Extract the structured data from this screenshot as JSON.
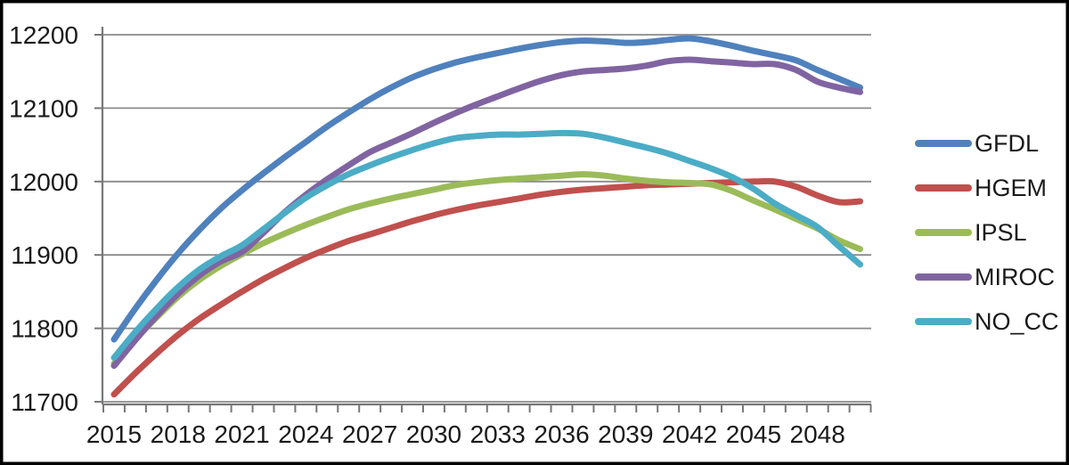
{
  "chart_data": {
    "type": "line",
    "title": "",
    "xlabel": "",
    "ylabel": "",
    "x": [
      2015,
      2016,
      2017,
      2018,
      2019,
      2020,
      2021,
      2022,
      2023,
      2024,
      2025,
      2026,
      2027,
      2028,
      2029,
      2030,
      2031,
      2032,
      2033,
      2034,
      2035,
      2036,
      2037,
      2038,
      2039,
      2040,
      2041,
      2042,
      2043,
      2044,
      2045,
      2046,
      2047,
      2048,
      2049,
      2050
    ],
    "x_tick_labels": [
      "2015",
      "2018",
      "2021",
      "2024",
      "2027",
      "2030",
      "2033",
      "2036",
      "2039",
      "2042",
      "2045",
      "2048"
    ],
    "x_tick_step_years": 3,
    "y_tick_labels": [
      "12200",
      "12100",
      "12000",
      "11900",
      "11800",
      "11700"
    ],
    "y_ticks": [
      12200,
      12100,
      12000,
      11900,
      11800,
      11700
    ],
    "ylim": [
      11690,
      12210
    ],
    "grid": true,
    "legend_position": "right",
    "series": [
      {
        "name": "GFDL",
        "color": "#4F81BD",
        "values": [
          11785,
          11827,
          11866,
          11902,
          11934,
          11963,
          11988,
          12011,
          12033,
          12054,
          12075,
          12094,
          12112,
          12128,
          12142,
          12153,
          12162,
          12169,
          12175,
          12181,
          12186,
          12190,
          12192,
          12191,
          12189,
          12190,
          12193,
          12195,
          12191,
          12185,
          12178,
          12172,
          12165,
          12152,
          12140,
          12128
        ]
      },
      {
        "name": "HGEM",
        "color": "#C0504D",
        "values": [
          11710,
          11739,
          11766,
          11791,
          11813,
          11832,
          11850,
          11867,
          11882,
          11896,
          11908,
          11919,
          11928,
          11937,
          11946,
          11954,
          11961,
          11967,
          11972,
          11977,
          11982,
          11986,
          11989,
          11991,
          11993,
          11995,
          11996,
          11997,
          11998,
          11999,
          12000,
          12000,
          11993,
          11981,
          11972,
          11973
        ]
      },
      {
        "name": "IPSL",
        "color": "#9BBB59",
        "values": [
          11752,
          11785,
          11815,
          11843,
          11866,
          11885,
          11901,
          11916,
          11929,
          11941,
          11952,
          11962,
          11970,
          11977,
          11983,
          11989,
          11995,
          11999,
          12002,
          12004,
          12006,
          12008,
          12010,
          12008,
          12004,
          12001,
          11999,
          11998,
          11996,
          11987,
          11974,
          11962,
          11949,
          11936,
          11920,
          11908
        ]
      },
      {
        "name": "MIROC",
        "color": "#8064A2",
        "values": [
          11749,
          11784,
          11817,
          11847,
          11872,
          11891,
          11904,
          11930,
          11958,
          11982,
          12003,
          12022,
          12040,
          12053,
          12066,
          12080,
          12093,
          12105,
          12116,
          12127,
          12137,
          12145,
          12150,
          12152,
          12154,
          12158,
          12164,
          12166,
          12164,
          12162,
          12160,
          12160,
          12152,
          12136,
          12128,
          12122
        ]
      },
      {
        "name": "NO_CC",
        "color": "#4BACC6",
        "values": [
          11760,
          11795,
          11827,
          11856,
          11880,
          11898,
          11913,
          11935,
          11957,
          11978,
          11995,
          12010,
          12022,
          12033,
          12043,
          12052,
          12059,
          12062,
          12064,
          12064,
          12065,
          12066,
          12065,
          12060,
          12053,
          12046,
          12038,
          12028,
          12018,
          12006,
          11990,
          11970,
          11954,
          11938,
          11912,
          11887
        ]
      }
    ]
  },
  "style": {
    "background": "#ffffff",
    "frame_border": "#000000",
    "gridline_color": "#8a8a8a",
    "axis_color": "#777777",
    "text_color": "#1a1a1a"
  }
}
